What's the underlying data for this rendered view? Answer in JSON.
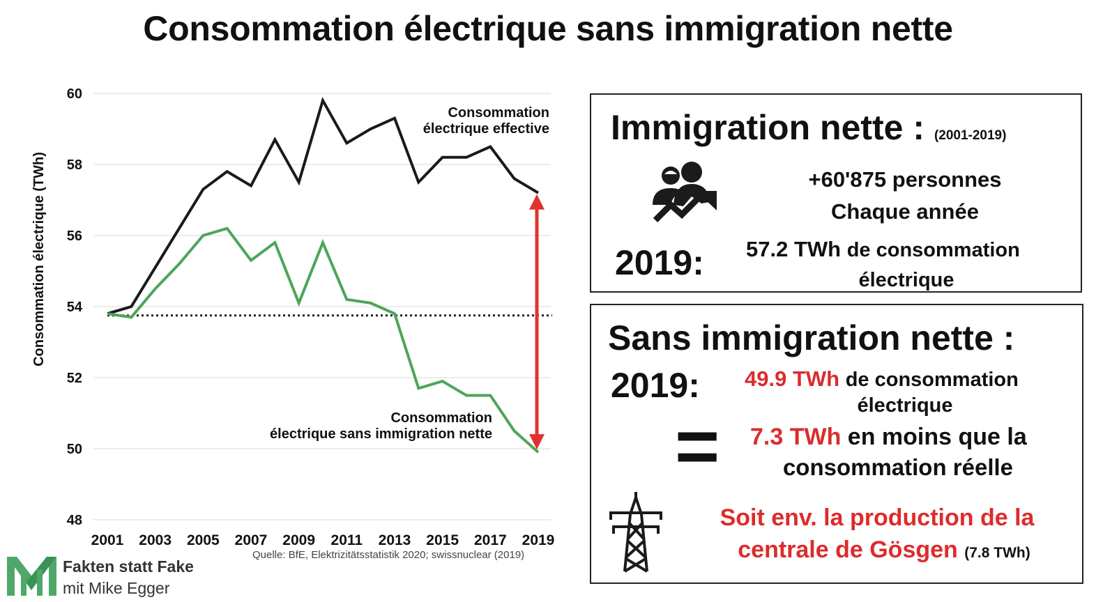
{
  "title": "Consommation électrique sans immigration nette",
  "chart_data": {
    "type": "line",
    "ylabel": "Consommation électrique (TWh)",
    "xlabel": "",
    "ylim": [
      48,
      60
    ],
    "yticks": [
      48,
      50,
      52,
      54,
      56,
      58,
      60
    ],
    "xticks": [
      2001,
      2003,
      2005,
      2007,
      2009,
      2011,
      2013,
      2015,
      2017,
      2019
    ],
    "x": [
      2001,
      2002,
      2003,
      2004,
      2005,
      2006,
      2007,
      2008,
      2009,
      2010,
      2011,
      2012,
      2013,
      2014,
      2015,
      2016,
      2017,
      2018,
      2019
    ],
    "series": [
      {
        "name": "Consommation électrique effective",
        "color": "#1a1a1a",
        "values": [
          53.8,
          54.0,
          55.1,
          56.2,
          57.3,
          57.8,
          57.4,
          58.7,
          57.5,
          59.8,
          58.6,
          59.0,
          59.3,
          57.5,
          58.2,
          58.2,
          58.5,
          57.6,
          57.2
        ]
      },
      {
        "name": "Consommation électrique sans immigration nette",
        "color": "#4ea55a",
        "values": [
          53.8,
          53.7,
          54.5,
          55.2,
          56.0,
          56.2,
          55.3,
          55.8,
          54.1,
          55.8,
          54.2,
          54.1,
          53.8,
          51.7,
          51.9,
          51.5,
          51.5,
          50.5,
          49.9
        ]
      }
    ],
    "reference_line": {
      "y": 53.75,
      "style": "dotted"
    },
    "annotations": [
      {
        "text_lines": [
          "Consommation",
          "électrique effective"
        ],
        "series": 0
      },
      {
        "text_lines": [
          "Consommation",
          "électrique sans immigration nette"
        ],
        "series": 1
      }
    ],
    "arrow": {
      "x": 2019,
      "from": 49.9,
      "to": 57.2,
      "color": "#e0332f"
    },
    "grid": "horizontal",
    "legend": "none"
  },
  "source": "Quelle: BfE, Elektrizitätsstatistik 2020; swissnuclear (2019)",
  "logo": {
    "line1": "Fakten statt Fake",
    "line2": "mit Mike Egger"
  },
  "box1": {
    "title": "Immigration nette :",
    "title_small": "(2001-2019)",
    "line1": "+60'875 personnes",
    "line2": "Chaque année",
    "year": "2019:",
    "value": "57.2 TWh",
    "value_rest": "de consommation",
    "value_line2": "électrique",
    "icon": "people-growth-icon"
  },
  "box2": {
    "title": "Sans immigration nette :",
    "year": "2019:",
    "value": "49.9 TWh",
    "value_rest": "de consommation",
    "value_line2": "électrique",
    "equals_symbol": "=",
    "diff": "7.3 TWh",
    "diff_rest": "en moins que la",
    "diff_line2": "consommation réelle",
    "note_line1": "Soit env. la production de la",
    "note_line2": "centrale de Gösgen",
    "note_small": "(7.8 TWh)",
    "icon": "power-pylon-icon",
    "accent": "#dc2c2c"
  }
}
